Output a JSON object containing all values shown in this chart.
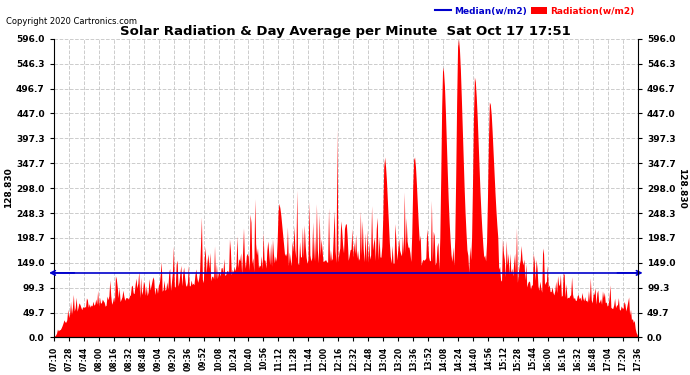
{
  "title": "Solar Radiation & Day Average per Minute  Sat Oct 17 17:51",
  "copyright": "Copyright 2020 Cartronics.com",
  "legend_median_label": "Median(w/m2)",
  "legend_radiation_label": "Radiation(w/m2)",
  "left_ylabel": "128.830",
  "right_ylabel": "128.830",
  "median_value": 128.83,
  "ymax": 596.0,
  "ytick_values": [
    0.0,
    49.7,
    99.3,
    149.0,
    198.7,
    248.3,
    298.0,
    347.7,
    397.3,
    447.0,
    496.7,
    546.3,
    596.0
  ],
  "xtick_labels": [
    "07:10",
    "07:28",
    "07:44",
    "08:00",
    "08:16",
    "08:32",
    "08:48",
    "09:04",
    "09:20",
    "09:36",
    "09:52",
    "10:08",
    "10:24",
    "10:40",
    "10:56",
    "11:12",
    "11:28",
    "11:44",
    "12:00",
    "12:16",
    "12:32",
    "12:48",
    "13:04",
    "13:20",
    "13:36",
    "13:52",
    "14:08",
    "14:24",
    "14:40",
    "14:56",
    "15:12",
    "15:28",
    "15:44",
    "16:00",
    "16:16",
    "16:32",
    "16:48",
    "17:04",
    "17:20",
    "17:36"
  ],
  "bg_color": "#ffffff",
  "fill_color": "#ff0000",
  "median_color": "#0000cc",
  "grid_color": "#cccccc",
  "title_color": "#000000",
  "copyright_color": "#000000"
}
